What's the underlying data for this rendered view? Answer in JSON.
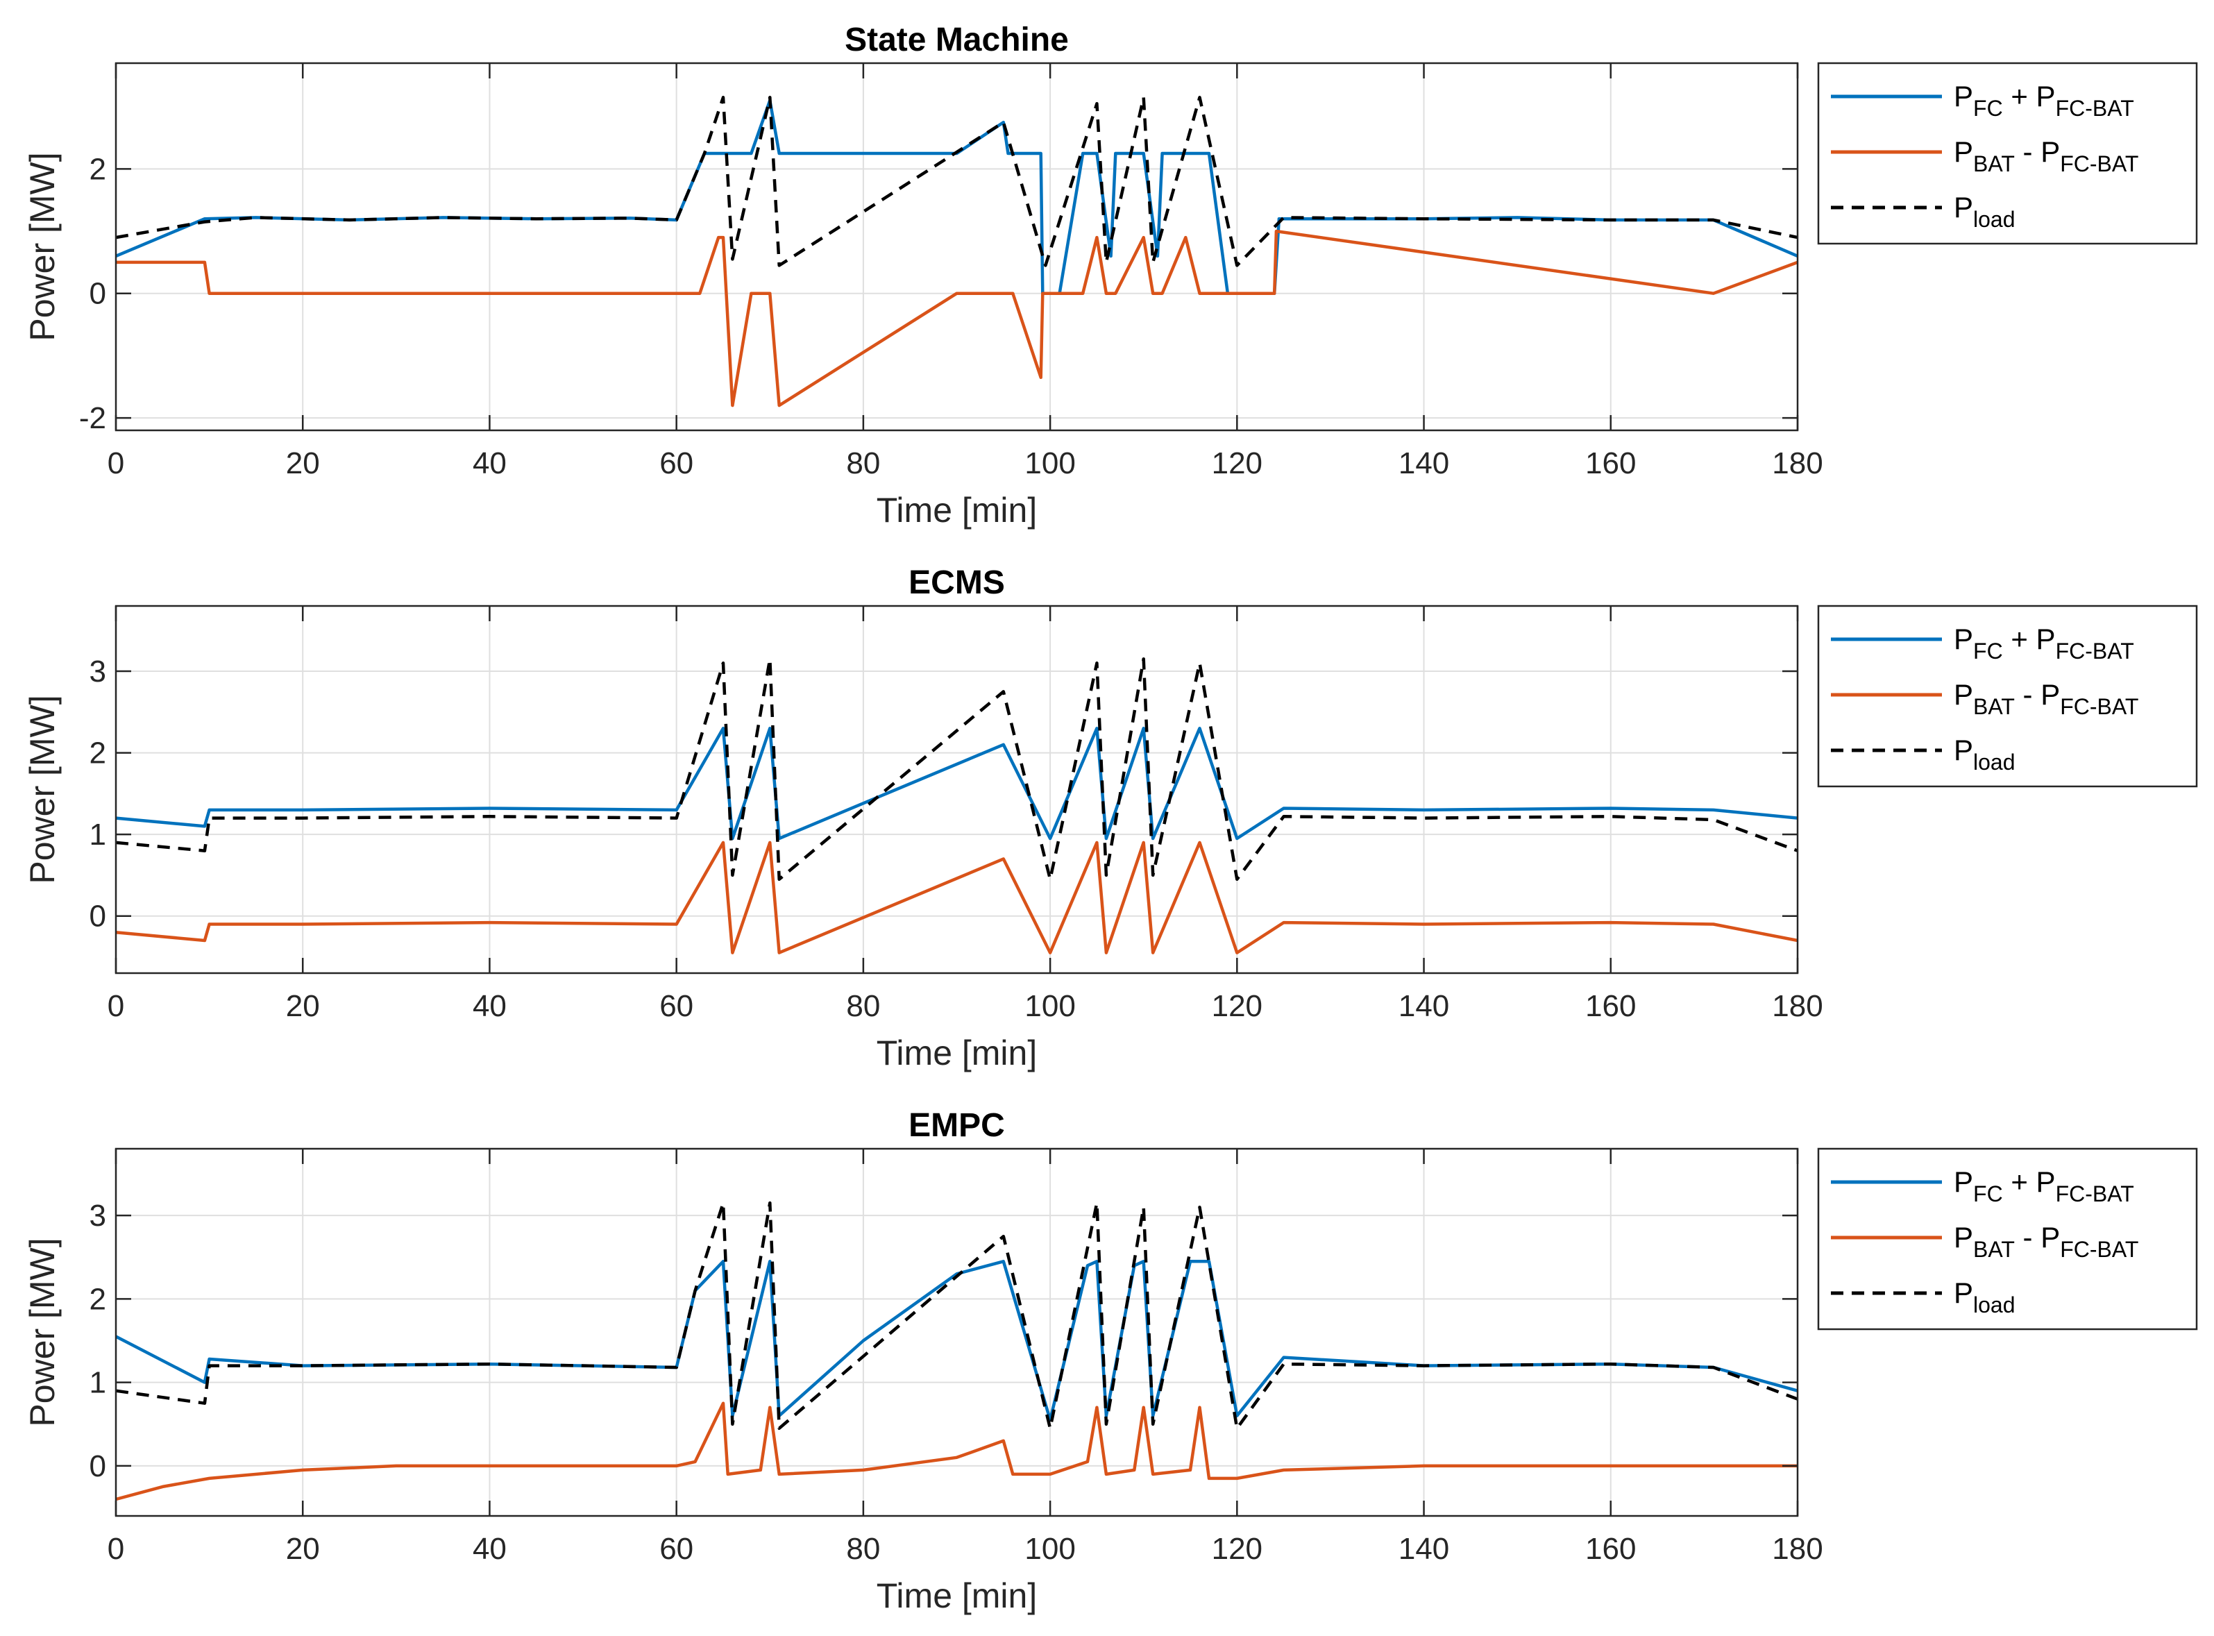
{
  "figure": {
    "x_axis_label": "Time [min]",
    "y_axis_label": "Power [MW]",
    "legend_entries": [
      {
        "base": "P",
        "sub": "FC",
        "operator": " + ",
        "base2": "P",
        "sub2": "FC-BAT",
        "color": "#0072BD",
        "style": "solid"
      },
      {
        "base": "P",
        "sub": "BAT",
        "operator": " - ",
        "base2": "P",
        "sub2": "FC-BAT",
        "color": "#D95319",
        "style": "solid"
      },
      {
        "base": "P",
        "sub": "load",
        "operator": "",
        "base2": "",
        "sub2": "",
        "color": "#000000",
        "style": "dashed"
      }
    ]
  },
  "chart_data": [
    {
      "type": "line",
      "title": "State Machine",
      "xlabel": "Time [min]",
      "ylabel": "Power [MW]",
      "xlim": [
        0,
        180
      ],
      "ylim": [
        -2.2,
        3.7
      ],
      "xticks": [
        0,
        20,
        40,
        60,
        80,
        100,
        120,
        140,
        160,
        180
      ],
      "yticks": [
        -2,
        0,
        2
      ],
      "grid": true,
      "legend_position": "outside-right",
      "series": [
        {
          "name": "P_FC + P_FC-BAT",
          "color": "#0072BD",
          "style": "solid",
          "x": [
            0,
            9.5,
            15,
            25,
            35,
            45,
            55,
            60,
            63,
            65,
            66.5,
            68,
            70,
            71,
            90,
            95,
            95.5,
            99,
            99.2,
            101,
            103.5,
            105,
            106.5,
            107,
            110,
            111.5,
            112,
            116,
            117,
            119,
            124,
            124.5,
            140,
            150,
            160,
            171,
            180
          ],
          "y": [
            0.6,
            1.2,
            1.22,
            1.18,
            1.22,
            1.2,
            1.21,
            1.18,
            2.25,
            2.25,
            2.25,
            2.25,
            3.1,
            2.25,
            2.25,
            2.75,
            2.25,
            2.25,
            0,
            0,
            2.25,
            2.25,
            0.6,
            2.25,
            2.25,
            0.6,
            2.25,
            2.25,
            2.25,
            0,
            0,
            1.2,
            1.2,
            1.22,
            1.18,
            1.18,
            0.6
          ]
        },
        {
          "name": "P_BAT - P_FC-BAT",
          "color": "#D95319",
          "style": "solid",
          "x": [
            0,
            9.5,
            10,
            62.5,
            64.5,
            65,
            66,
            68,
            70,
            71,
            90,
            96,
            99,
            99.2,
            101,
            103.5,
            105,
            106,
            107,
            110,
            111,
            112,
            114.5,
            116,
            119,
            124,
            124.2,
            171,
            180
          ],
          "y": [
            0.5,
            0.5,
            0,
            0,
            0.9,
            0.9,
            -1.8,
            0,
            0,
            -1.8,
            0,
            0,
            -1.35,
            0,
            0,
            0,
            0.9,
            0,
            0,
            0.9,
            0,
            0,
            0.9,
            0,
            0,
            0,
            1.0,
            0,
            0.5
          ]
        },
        {
          "name": "P_load",
          "color": "#000000",
          "style": "dashed",
          "x": [
            0,
            9.5,
            15,
            25,
            35,
            45,
            55,
            60,
            63,
            65,
            66,
            70,
            71,
            95,
            99.5,
            105,
            106,
            110,
            111,
            116,
            120,
            125,
            140,
            160,
            171,
            180
          ],
          "y": [
            0.9,
            1.15,
            1.22,
            1.18,
            1.22,
            1.2,
            1.21,
            1.18,
            2.25,
            3.15,
            0.55,
            3.15,
            0.45,
            2.75,
            0.45,
            3.05,
            0.5,
            3.15,
            0.5,
            3.15,
            0.45,
            1.22,
            1.2,
            1.18,
            1.18,
            0.9
          ]
        }
      ]
    },
    {
      "type": "line",
      "title": "ECMS",
      "xlabel": "Time [min]",
      "ylabel": "Power [MW]",
      "xlim": [
        0,
        180
      ],
      "ylim": [
        -0.7,
        3.8
      ],
      "xticks": [
        0,
        20,
        40,
        60,
        80,
        100,
        120,
        140,
        160,
        180
      ],
      "yticks": [
        0,
        1,
        2,
        3
      ],
      "grid": true,
      "legend_position": "outside-right",
      "series": [
        {
          "name": "P_FC + P_FC-BAT",
          "color": "#0072BD",
          "style": "solid",
          "x": [
            0,
            9.5,
            10,
            20,
            40,
            60,
            65,
            66,
            70,
            71,
            95,
            100,
            105,
            106,
            110,
            111,
            116,
            120,
            125,
            140,
            160,
            171,
            180
          ],
          "y": [
            1.2,
            1.1,
            1.3,
            1.3,
            1.32,
            1.3,
            2.3,
            0.95,
            2.3,
            0.95,
            2.1,
            0.95,
            2.3,
            0.95,
            2.3,
            0.95,
            2.3,
            0.95,
            1.32,
            1.3,
            1.32,
            1.3,
            1.2
          ]
        },
        {
          "name": "P_BAT - P_FC-BAT",
          "color": "#D95319",
          "style": "solid",
          "x": [
            0,
            9.5,
            10,
            20,
            40,
            60,
            65,
            66,
            70,
            71,
            95,
            100,
            105,
            106,
            110,
            111,
            116,
            120,
            125,
            140,
            160,
            171,
            180
          ],
          "y": [
            -0.2,
            -0.3,
            -0.1,
            -0.1,
            -0.08,
            -0.1,
            0.9,
            -0.45,
            0.9,
            -0.45,
            0.7,
            -0.45,
            0.9,
            -0.45,
            0.9,
            -0.45,
            0.9,
            -0.45,
            -0.08,
            -0.1,
            -0.08,
            -0.1,
            -0.3
          ]
        },
        {
          "name": "P_load",
          "color": "#000000",
          "style": "dashed",
          "x": [
            0,
            9.5,
            10,
            20,
            40,
            60,
            65,
            66,
            70,
            71,
            95,
            100,
            105,
            106,
            110,
            111,
            116,
            120,
            125,
            140,
            160,
            171,
            180
          ],
          "y": [
            0.9,
            0.8,
            1.2,
            1.2,
            1.22,
            1.2,
            3.1,
            0.5,
            3.15,
            0.45,
            2.75,
            0.45,
            3.1,
            0.5,
            3.15,
            0.5,
            3.1,
            0.45,
            1.22,
            1.2,
            1.22,
            1.18,
            0.8
          ]
        }
      ]
    },
    {
      "type": "line",
      "title": "EMPC",
      "xlabel": "Time [min]",
      "ylabel": "Power [MW]",
      "xlim": [
        0,
        180
      ],
      "ylim": [
        -0.6,
        3.8
      ],
      "xticks": [
        0,
        20,
        40,
        60,
        80,
        100,
        120,
        140,
        160,
        180
      ],
      "yticks": [
        0,
        1,
        2,
        3
      ],
      "grid": true,
      "legend_position": "outside-right",
      "series": [
        {
          "name": "P_FC + P_FC-BAT",
          "color": "#0072BD",
          "style": "solid",
          "x": [
            0,
            9.5,
            10,
            20,
            40,
            60,
            62,
            65,
            66,
            70,
            71,
            80,
            90,
            95,
            100,
            104,
            105,
            106,
            109,
            110,
            111,
            115,
            117,
            120,
            125,
            140,
            160,
            171,
            180
          ],
          "y": [
            1.55,
            1.0,
            1.28,
            1.2,
            1.22,
            1.18,
            2.1,
            2.45,
            0.6,
            2.45,
            0.6,
            1.5,
            2.3,
            2.45,
            0.55,
            2.4,
            2.45,
            0.6,
            2.4,
            2.45,
            0.6,
            2.45,
            2.45,
            0.6,
            1.3,
            1.2,
            1.22,
            1.18,
            0.9
          ]
        },
        {
          "name": "P_BAT - P_FC-BAT",
          "color": "#D95319",
          "style": "solid",
          "x": [
            0,
            5,
            10,
            20,
            30,
            40,
            60,
            62,
            65,
            65.5,
            69,
            70,
            71,
            80,
            90,
            95,
            96,
            100,
            104,
            105,
            106,
            109,
            110,
            111,
            115,
            116,
            117,
            120,
            125,
            140,
            160,
            171,
            180
          ],
          "y": [
            -0.4,
            -0.25,
            -0.15,
            -0.05,
            0,
            0,
            0,
            0.05,
            0.75,
            -0.1,
            -0.05,
            0.7,
            -0.1,
            -0.05,
            0.1,
            0.3,
            -0.1,
            -0.1,
            0.05,
            0.7,
            -0.1,
            -0.05,
            0.7,
            -0.1,
            -0.05,
            0.7,
            -0.15,
            -0.15,
            -0.05,
            0,
            0,
            0,
            0
          ]
        },
        {
          "name": "P_load",
          "color": "#000000",
          "style": "dashed",
          "x": [
            0,
            9.5,
            10,
            20,
            40,
            60,
            62,
            65,
            66,
            70,
            71,
            95,
            100,
            105,
            106,
            110,
            111,
            116,
            120,
            125,
            140,
            160,
            171,
            180
          ],
          "y": [
            0.9,
            0.75,
            1.2,
            1.2,
            1.22,
            1.18,
            2.1,
            3.15,
            0.5,
            3.15,
            0.45,
            2.75,
            0.45,
            3.15,
            0.5,
            3.1,
            0.5,
            3.1,
            0.45,
            1.22,
            1.2,
            1.22,
            1.18,
            0.8
          ]
        }
      ]
    }
  ]
}
